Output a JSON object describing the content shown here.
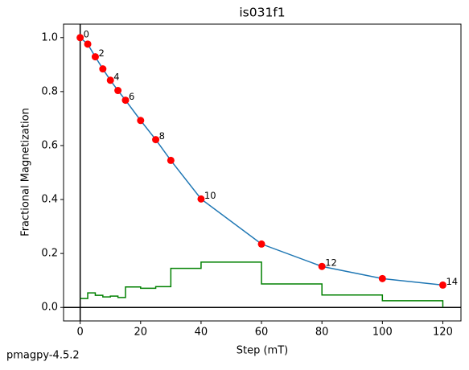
{
  "chart_data": {
    "type": "line",
    "title": "is031f1",
    "xlabel": "Step (mT)",
    "ylabel": "Fractional Magnetization",
    "footer": "pmagpy-4.5.2",
    "x": [
      0,
      2.5,
      5,
      7.5,
      10,
      12.5,
      15,
      20,
      25,
      30,
      40,
      60,
      80,
      100,
      120
    ],
    "series": [
      {
        "color": "#1f77b4",
        "marker_color": "red",
        "draw": "line",
        "values": [
          1.0,
          0.976,
          0.929,
          0.884,
          0.842,
          0.804,
          0.768,
          0.693,
          0.622,
          0.545,
          0.402,
          0.235,
          0.152,
          0.107,
          0.083
        ],
        "point_labels": [
          "0",
          null,
          "2",
          null,
          "4",
          null,
          "6",
          null,
          "8",
          null,
          "10",
          null,
          "12",
          null,
          "14"
        ]
      },
      {
        "color": "green",
        "draw": "step-post",
        "values": [
          0.033,
          0.054,
          0.045,
          0.039,
          0.042,
          0.037,
          0.076,
          0.071,
          0.077,
          0.145,
          0.168,
          0.087,
          0.046,
          0.025,
          0
        ]
      }
    ],
    "xlim": [
      -5.5,
      126
    ],
    "ylim": [
      -0.05,
      1.05
    ],
    "xticks": [
      0,
      20,
      40,
      60,
      80,
      100,
      120
    ],
    "yticks": [
      {
        "value": 0,
        "label": "0.0"
      },
      {
        "value": 0.2,
        "label": "0.2"
      },
      {
        "value": 0.4,
        "label": "0.4"
      },
      {
        "value": 0.6,
        "label": "0.6"
      },
      {
        "value": 0.8,
        "label": "0.8"
      },
      {
        "value": 1.0,
        "label": "1.0"
      }
    ],
    "axhline": 0,
    "axvline": 0
  }
}
